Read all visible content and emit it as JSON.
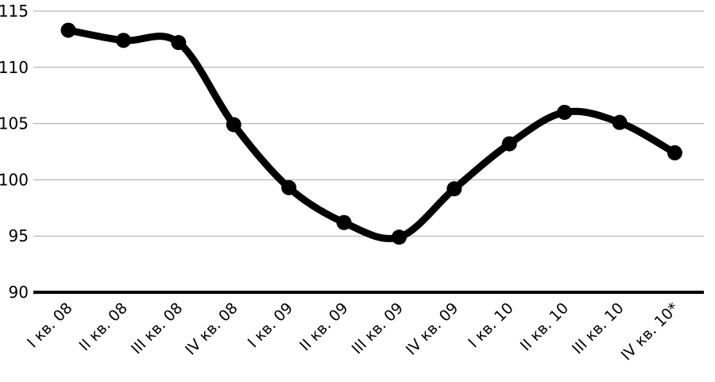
{
  "chart_data": {
    "type": "line",
    "title": "",
    "xlabel": "",
    "ylabel": "",
    "ylim": [
      90,
      115
    ],
    "yticks": [
      90,
      95,
      100,
      105,
      110,
      115
    ],
    "yticks_labels": [
      "90",
      "95",
      "100",
      "105",
      "110",
      "115"
    ],
    "grid": true,
    "legend": "none",
    "line_color": "#000000",
    "grid_color": "#a6a6a6",
    "categories": [
      "I кв. 08",
      "II кв. 08",
      "III кв. 08",
      "IV кв. 08",
      "I кв. 09",
      "II кв. 09",
      "III кв. 09",
      "IV кв. 09",
      "I кв. 10",
      "II кв. 10",
      "III кв. 10",
      "IV кв. 10*"
    ],
    "series": [
      {
        "values": [
          113.3,
          112.4,
          112.2,
          104.9,
          99.3,
          96.2,
          94.9,
          99.2,
          103.2,
          106.0,
          105.1,
          102.4
        ]
      }
    ]
  }
}
